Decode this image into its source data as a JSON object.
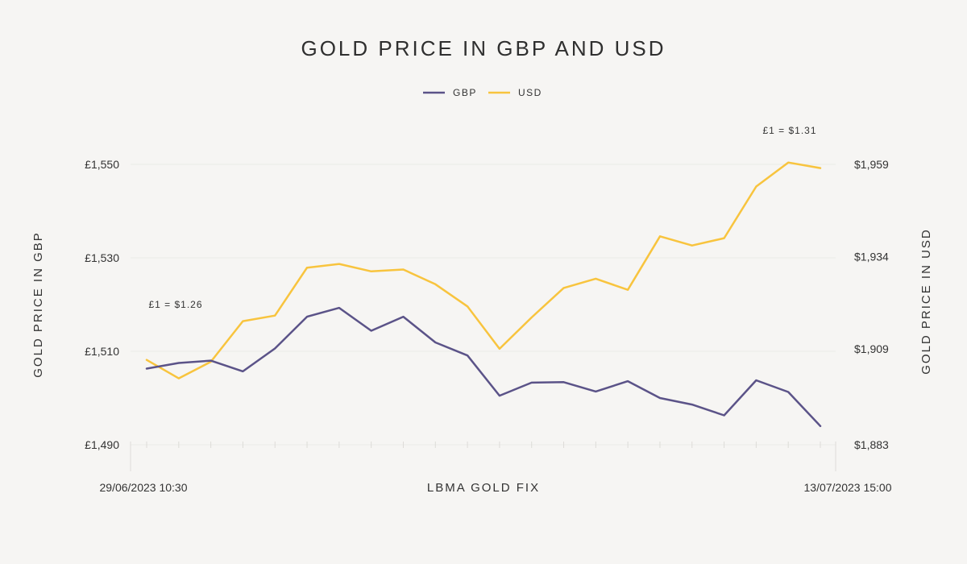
{
  "chart_data": {
    "type": "line",
    "title": "GOLD PRICE IN GBP AND USD",
    "xlabel": "LBMA GOLD FIX",
    "ylabel_left": "GOLD PRICE IN GBP",
    "ylabel_right": "GOLD PRICE IN USD",
    "x_start_label": "29/06/2023 10:30",
    "x_end_label": "13/07/2023 15:00",
    "legend": [
      "GBP",
      "USD"
    ],
    "left_axis": {
      "range": [
        1490,
        1550
      ],
      "ticks": [
        1490,
        1510,
        1530,
        1550
      ],
      "tick_labels": [
        "£1,490",
        "£1,510",
        "£1,530",
        "£1,550"
      ]
    },
    "right_axis": {
      "range": [
        1883,
        1959
      ],
      "ticks": [
        1883,
        1909,
        1934,
        1959
      ],
      "tick_labels": [
        "$1,883",
        "$1,909",
        "$1,934",
        "$1,959"
      ]
    },
    "series": [
      {
        "name": "GBP",
        "color": "#5b5388",
        "axis": "left",
        "values": [
          1506.3,
          1507.5,
          1508.0,
          1505.7,
          1510.6,
          1517.4,
          1519.3,
          1514.4,
          1517.4,
          1511.9,
          1509.1,
          1500.5,
          1503.3,
          1503.4,
          1501.4,
          1503.6,
          1500.0,
          1498.6,
          1496.3,
          1503.8,
          1501.3,
          1494.0
        ]
      },
      {
        "name": "USD",
        "color": "#f8c43e",
        "axis": "right",
        "values": [
          1906.0,
          1901.0,
          1905.5,
          1916.5,
          1918.0,
          1931.0,
          1932.0,
          1930.0,
          1930.5,
          1926.5,
          1920.5,
          1909.0,
          1917.5,
          1925.5,
          1928.0,
          1925.0,
          1939.5,
          1937.0,
          1939.0,
          1953.0,
          1959.5,
          1958.0
        ]
      }
    ],
    "annotations": [
      {
        "text": "£1 = $1.26",
        "index": 0
      },
      {
        "text": "£1 = $1.31",
        "index": 20
      }
    ],
    "grid": true,
    "legend_position": "top-center"
  }
}
